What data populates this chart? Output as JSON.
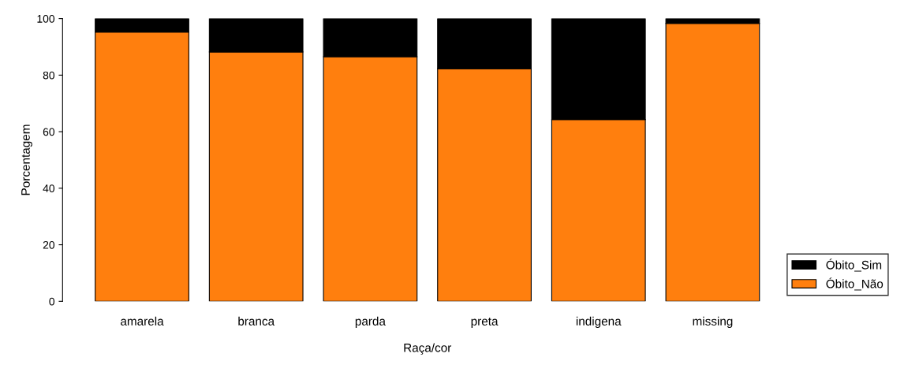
{
  "chart_data": {
    "type": "bar",
    "xlabel": "Raça/cor",
    "ylabel": "Porcentagem",
    "categories": [
      "amarela",
      "branca",
      "parda",
      "preta",
      "indigena",
      "missing"
    ],
    "stacked": true,
    "series": [
      {
        "name": "Óbito_Não",
        "color": "#ff7f0e",
        "values": [
          95.2,
          88.2,
          86.5,
          82.3,
          64.3,
          98.3
        ]
      },
      {
        "name": "Óbito_Sim",
        "color": "#000000",
        "values": [
          4.8,
          11.8,
          13.5,
          17.7,
          35.7,
          1.7
        ]
      }
    ],
    "ylim": [
      0,
      100
    ],
    "yticks": [
      0,
      20,
      40,
      60,
      80,
      100
    ],
    "grid": false,
    "legend": "bottom right"
  }
}
